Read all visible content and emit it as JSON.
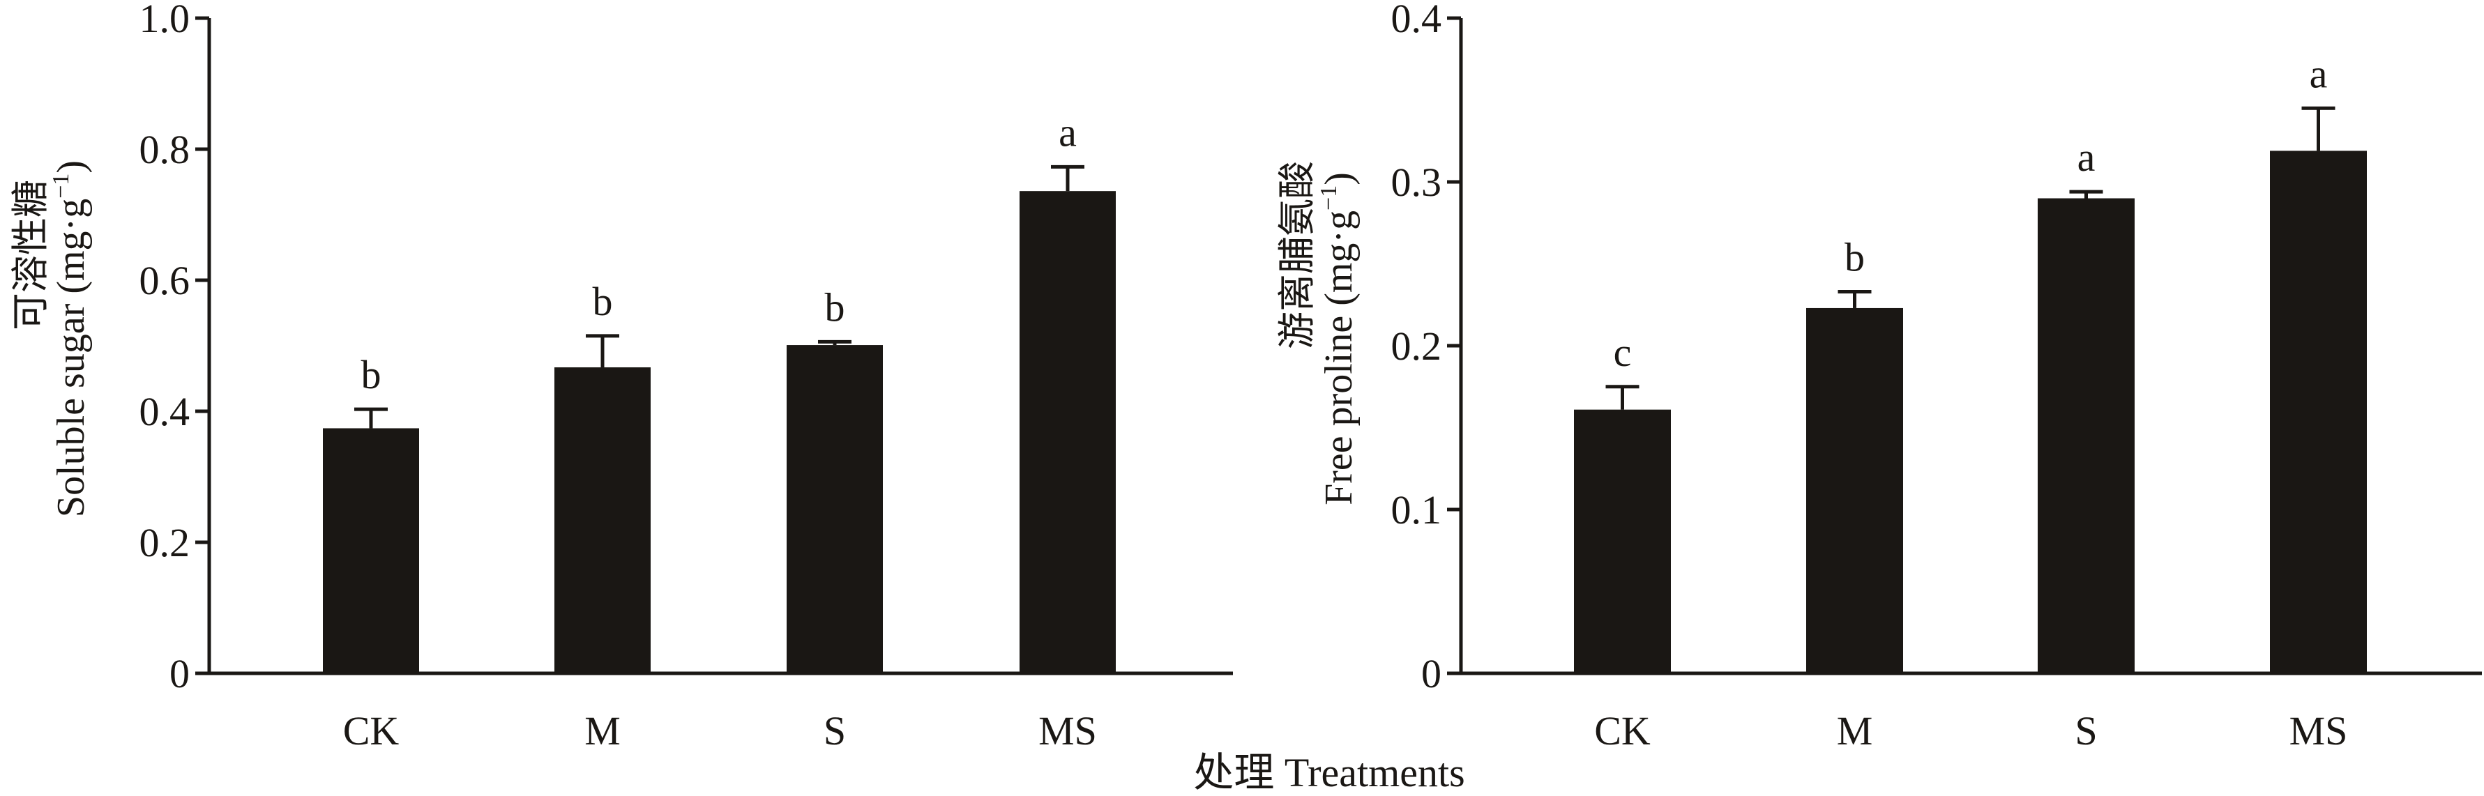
{
  "chart_data": [
    {
      "type": "bar",
      "title": "",
      "ylabel_cn": "可溶性糖",
      "ylabel": "Soluble sugar (mg·g",
      "ylabel_sup": "−1",
      "ylabel_close": ")",
      "categories": [
        "CK",
        "M",
        "S",
        "MS"
      ],
      "values": [
        0.374,
        0.467,
        0.501,
        0.736
      ],
      "errors": [
        0.029,
        0.048,
        0.005,
        0.037
      ],
      "letters": [
        "b",
        "b",
        "b",
        "a"
      ],
      "ylim": [
        0,
        1.0
      ],
      "yticks": [
        0,
        0.2,
        0.4,
        0.6,
        0.8,
        1.0
      ],
      "ytick_labels": [
        "0",
        "0.2",
        "0.4",
        "0.6",
        "0.8",
        "1.0"
      ],
      "grid": false,
      "bar_color": "#1a1714"
    },
    {
      "type": "bar",
      "title": "",
      "ylabel_cn": "游离脯氨酸",
      "ylabel": "Free proline (mg·g",
      "ylabel_sup": "−1",
      "ylabel_close": ")",
      "categories": [
        "CK",
        "M",
        "S",
        "MS"
      ],
      "values": [
        0.161,
        0.223,
        0.29,
        0.319
      ],
      "errors": [
        0.014,
        0.01,
        0.004,
        0.026
      ],
      "letters": [
        "c",
        "b",
        "a",
        "a"
      ],
      "ylim": [
        0,
        0.4
      ],
      "yticks": [
        0,
        0.1,
        0.2,
        0.3,
        0.4
      ],
      "ytick_labels": [
        "0",
        "0.1",
        "0.2",
        "0.3",
        "0.4"
      ],
      "grid": false,
      "bar_color": "#1a1714"
    }
  ],
  "xlabel": "处理 Treatments"
}
